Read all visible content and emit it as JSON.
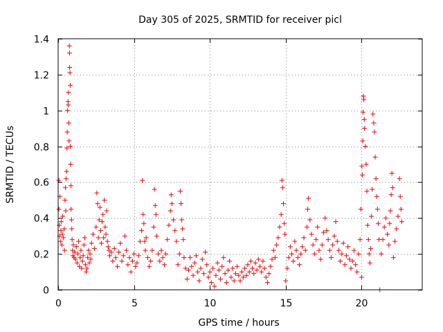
{
  "chart_data": {
    "type": "scatter",
    "title": "Day 305 of 2025, SRMTID for receiver picl",
    "xlabel": "GPS time / hours",
    "ylabel": "SRMTID / TECUs",
    "xlim": [
      0,
      24
    ],
    "ylim": [
      0,
      1.4
    ],
    "xticks": [
      0,
      5,
      10,
      15,
      20
    ],
    "xtick_labels": [
      "0",
      "5",
      "10",
      "15",
      "20"
    ],
    "yticks": [
      0,
      0.2,
      0.4,
      0.6,
      0.8,
      1.0,
      1.2,
      1.4
    ],
    "ytick_labels": [
      "0",
      "0.2",
      "0.4",
      "0.6",
      "0.8",
      "1",
      "1.2",
      "1.4"
    ],
    "grid": true,
    "marker": "plus",
    "color": "#ee0000",
    "series": [
      {
        "name": "SRMTID",
        "points": [
          [
            0.05,
            0.61
          ],
          [
            0.05,
            0.45
          ],
          [
            0.08,
            0.36
          ],
          [
            0.1,
            0.3
          ],
          [
            0.12,
            0.52
          ],
          [
            0.15,
            0.27
          ],
          [
            0.18,
            0.33
          ],
          [
            0.2,
            0.38
          ],
          [
            0.25,
            0.25
          ],
          [
            0.28,
            0.31
          ],
          [
            0.3,
            0.41
          ],
          [
            0.35,
            0.29
          ],
          [
            0.4,
            0.34
          ],
          [
            0.42,
            0.22
          ],
          [
            0.45,
            0.5
          ],
          [
            0.48,
            0.57
          ],
          [
            0.5,
            0.44
          ],
          [
            0.52,
            0.62
          ],
          [
            0.55,
            0.66
          ],
          [
            0.58,
            0.79
          ],
          [
            0.6,
            0.88
          ],
          [
            0.62,
            1.0
          ],
          [
            0.65,
            1.05
          ],
          [
            0.66,
            1.03
          ],
          [
            0.68,
            1.1
          ],
          [
            0.7,
            0.93
          ],
          [
            0.72,
            0.83
          ],
          [
            0.74,
            1.36
          ],
          [
            0.75,
            1.32
          ],
          [
            0.76,
            1.24
          ],
          [
            0.78,
            1.21
          ],
          [
            0.8,
            1.14
          ],
          [
            0.8,
            0.8
          ],
          [
            0.82,
            0.7
          ],
          [
            0.84,
            0.58
          ],
          [
            0.85,
            0.45
          ],
          [
            0.88,
            0.39
          ],
          [
            0.9,
            0.34
          ],
          [
            0.92,
            0.28
          ],
          [
            0.95,
            0.22
          ],
          [
            0.98,
            0.19
          ],
          [
            1.0,
            0.25
          ],
          [
            1.05,
            0.18
          ],
          [
            1.1,
            0.21
          ],
          [
            1.15,
            0.17
          ],
          [
            1.2,
            0.24
          ],
          [
            1.25,
            0.15
          ],
          [
            1.3,
            0.2
          ],
          [
            1.35,
            0.27
          ],
          [
            1.4,
            0.13
          ],
          [
            1.45,
            0.18
          ],
          [
            1.5,
            0.22
          ],
          [
            1.55,
            0.12
          ],
          [
            1.6,
            0.16
          ],
          [
            1.65,
            0.19
          ],
          [
            1.7,
            0.25
          ],
          [
            1.75,
            0.29
          ],
          [
            1.8,
            0.14
          ],
          [
            1.85,
            0.1
          ],
          [
            1.9,
            0.12
          ],
          [
            1.95,
            0.18
          ],
          [
            2.0,
            0.22
          ],
          [
            2.05,
            0.15
          ],
          [
            2.1,
            0.2
          ],
          [
            2.15,
            0.17
          ],
          [
            2.2,
            0.26
          ],
          [
            2.3,
            0.31
          ],
          [
            2.4,
            0.23
          ],
          [
            2.5,
            0.35
          ],
          [
            2.55,
            0.54
          ],
          [
            2.6,
            0.48
          ],
          [
            2.65,
            0.29
          ],
          [
            2.7,
            0.39
          ],
          [
            2.75,
            0.46
          ],
          [
            2.8,
            0.33
          ],
          [
            2.85,
            0.26
          ],
          [
            2.9,
            0.38
          ],
          [
            2.95,
            0.42
          ],
          [
            3.0,
            0.29
          ],
          [
            3.05,
            0.5
          ],
          [
            3.1,
            0.35
          ],
          [
            3.15,
            0.31
          ],
          [
            3.2,
            0.44
          ],
          [
            3.25,
            0.27
          ],
          [
            3.3,
            0.24
          ],
          [
            3.35,
            0.22
          ],
          [
            3.4,
            0.19
          ],
          [
            3.5,
            0.21
          ],
          [
            3.6,
            0.16
          ],
          [
            3.7,
            0.23
          ],
          [
            3.8,
            0.18
          ],
          [
            3.9,
            0.13
          ],
          [
            4.0,
            0.21
          ],
          [
            4.1,
            0.26
          ],
          [
            4.2,
            0.16
          ],
          [
            4.3,
            0.19
          ],
          [
            4.4,
            0.3
          ],
          [
            4.5,
            0.22
          ],
          [
            4.6,
            0.14
          ],
          [
            4.7,
            0.18
          ],
          [
            4.8,
            0.1
          ],
          [
            4.9,
            0.16
          ],
          [
            5.0,
            0.2
          ],
          [
            5.1,
            0.13
          ],
          [
            5.2,
            0.15
          ],
          [
            5.3,
            0.19
          ],
          [
            5.4,
            0.27
          ],
          [
            5.5,
            0.33
          ],
          [
            5.55,
            0.61
          ],
          [
            5.6,
            0.42
          ],
          [
            5.65,
            0.37
          ],
          [
            5.7,
            0.27
          ],
          [
            5.75,
            0.22
          ],
          [
            5.8,
            0.29
          ],
          [
            5.9,
            0.18
          ],
          [
            6.0,
            0.13
          ],
          [
            6.1,
            0.16
          ],
          [
            6.2,
            0.22
          ],
          [
            6.3,
            0.35
          ],
          [
            6.35,
            0.56
          ],
          [
            6.4,
            0.47
          ],
          [
            6.45,
            0.42
          ],
          [
            6.5,
            0.3
          ],
          [
            6.6,
            0.2
          ],
          [
            6.7,
            0.16
          ],
          [
            6.8,
            0.22
          ],
          [
            6.9,
            0.18
          ],
          [
            7.0,
            0.14
          ],
          [
            7.1,
            0.2
          ],
          [
            7.2,
            0.28
          ],
          [
            7.3,
            0.36
          ],
          [
            7.4,
            0.44
          ],
          [
            7.45,
            0.53
          ],
          [
            7.5,
            0.48
          ],
          [
            7.6,
            0.39
          ],
          [
            7.7,
            0.33
          ],
          [
            7.8,
            0.27
          ],
          [
            7.9,
            0.14
          ],
          [
            8.0,
            0.2
          ],
          [
            8.05,
            0.55
          ],
          [
            8.1,
            0.48
          ],
          [
            8.15,
            0.39
          ],
          [
            8.2,
            0.34
          ],
          [
            8.25,
            0.28
          ],
          [
            8.3,
            0.18
          ],
          [
            8.4,
            0.12
          ],
          [
            8.5,
            0.06
          ],
          [
            8.6,
            0.11
          ],
          [
            8.7,
            0.18
          ],
          [
            8.8,
            0.13
          ],
          [
            8.9,
            0.08
          ],
          [
            9.0,
            0.15
          ],
          [
            9.1,
            0.19
          ],
          [
            9.2,
            0.1
          ],
          [
            9.3,
            0.05
          ],
          [
            9.4,
            0.12
          ],
          [
            9.5,
            0.17
          ],
          [
            9.6,
            0.09
          ],
          [
            9.7,
            0.21
          ],
          [
            9.8,
            0.14
          ],
          [
            9.9,
            0.07
          ],
          [
            10.0,
            0.1
          ],
          [
            10.1,
            0.04
          ],
          [
            10.2,
            0.12
          ],
          [
            10.3,
            0.02
          ],
          [
            10.4,
            0.08
          ],
          [
            10.5,
            0.15
          ],
          [
            10.6,
            0.11
          ],
          [
            10.7,
            0.06
          ],
          [
            10.8,
            0.13
          ],
          [
            10.9,
            0.18
          ],
          [
            11.0,
            0.09
          ],
          [
            11.1,
            0.04
          ],
          [
            11.2,
            0.11
          ],
          [
            11.3,
            0.16
          ],
          [
            11.4,
            0.07
          ],
          [
            11.5,
            0.12
          ],
          [
            11.6,
            0.05
          ],
          [
            11.7,
            0.09
          ],
          [
            11.8,
            0.13
          ],
          [
            11.9,
            0.08
          ],
          [
            12.0,
            0.05
          ],
          [
            12.1,
            0.1
          ],
          [
            12.2,
            0.07
          ],
          [
            12.3,
            0.12
          ],
          [
            12.4,
            0.08
          ],
          [
            12.5,
            0.14
          ],
          [
            12.6,
            0.1
          ],
          [
            12.7,
            0.16
          ],
          [
            12.8,
            0.12
          ],
          [
            12.9,
            0.09
          ],
          [
            13.0,
            0.15
          ],
          [
            13.1,
            0.11
          ],
          [
            13.2,
            0.17
          ],
          [
            13.3,
            0.13
          ],
          [
            13.4,
            0.1
          ],
          [
            13.5,
            0.16
          ],
          [
            13.6,
            0.12
          ],
          [
            13.7,
            0.07
          ],
          [
            13.8,
            0.04
          ],
          [
            13.9,
            0.09
          ],
          [
            14.0,
            0.13
          ],
          [
            14.1,
            0.17
          ],
          [
            14.2,
            0.22
          ],
          [
            14.3,
            0.18
          ],
          [
            14.4,
            0.25
          ],
          [
            14.5,
            0.29
          ],
          [
            14.6,
            0.35
          ],
          [
            14.7,
            0.42
          ],
          [
            14.75,
            0.61
          ],
          [
            14.8,
            0.57
          ],
          [
            14.85,
            0.48
          ],
          [
            14.9,
            0.37
          ],
          [
            14.95,
            0.31
          ],
          [
            15.0,
            0.05
          ],
          [
            15.1,
            0.12
          ],
          [
            15.2,
            0.18
          ],
          [
            15.3,
            0.24
          ],
          [
            15.4,
            0.2
          ],
          [
            15.5,
            0.16
          ],
          [
            15.6,
            0.27
          ],
          [
            15.7,
            0.22
          ],
          [
            15.8,
            0.18
          ],
          [
            15.9,
            0.14
          ],
          [
            16.0,
            0.2
          ],
          [
            16.1,
            0.24
          ],
          [
            16.2,
            0.29
          ],
          [
            16.3,
            0.22
          ],
          [
            16.4,
            0.35
          ],
          [
            16.45,
            0.45
          ],
          [
            16.5,
            0.51
          ],
          [
            16.6,
            0.39
          ],
          [
            16.7,
            0.31
          ],
          [
            16.8,
            0.25
          ],
          [
            16.9,
            0.2
          ],
          [
            17.0,
            0.28
          ],
          [
            17.1,
            0.35
          ],
          [
            17.2,
            0.22
          ],
          [
            17.3,
            0.17
          ],
          [
            17.4,
            0.25
          ],
          [
            17.5,
            0.32
          ],
          [
            17.6,
            0.4
          ],
          [
            17.7,
            0.33
          ],
          [
            17.8,
            0.28
          ],
          [
            17.9,
            0.22
          ],
          [
            18.0,
            0.18
          ],
          [
            18.1,
            0.25
          ],
          [
            18.2,
            0.3
          ],
          [
            18.3,
            0.38
          ],
          [
            18.4,
            0.27
          ],
          [
            18.5,
            0.22
          ],
          [
            18.6,
            0.16
          ],
          [
            18.7,
            0.2
          ],
          [
            18.8,
            0.26
          ],
          [
            18.9,
            0.14
          ],
          [
            19.0,
            0.19
          ],
          [
            19.1,
            0.24
          ],
          [
            19.2,
            0.17
          ],
          [
            19.3,
            0.12
          ],
          [
            19.4,
            0.16
          ],
          [
            19.5,
            0.22
          ],
          [
            19.6,
            0.14
          ],
          [
            19.7,
            0.1
          ],
          [
            19.8,
            0.2
          ],
          [
            19.9,
            0.28
          ],
          [
            19.95,
            0.45
          ],
          [
            20.0,
            0.07
          ],
          [
            20.02,
            0.69
          ],
          [
            20.05,
            0.64
          ],
          [
            20.08,
            0.83
          ],
          [
            20.1,
            0.99
          ],
          [
            20.12,
            1.08
          ],
          [
            20.15,
            1.06
          ],
          [
            20.18,
            0.95
          ],
          [
            20.2,
            0.9
          ],
          [
            20.25,
            0.8
          ],
          [
            20.3,
            0.7
          ],
          [
            20.35,
            0.55
          ],
          [
            20.4,
            0.36
          ],
          [
            20.45,
            0.28
          ],
          [
            20.5,
            0.2
          ],
          [
            20.55,
            0.15
          ],
          [
            20.6,
            0.23
          ],
          [
            20.65,
            0.41
          ],
          [
            20.7,
            0.56
          ],
          [
            20.75,
            0.98
          ],
          [
            20.8,
            0.93
          ],
          [
            20.85,
            0.88
          ],
          [
            20.9,
            0.74
          ],
          [
            20.95,
            0.62
          ],
          [
            21.0,
            0.52
          ],
          [
            21.05,
            0.45
          ],
          [
            21.1,
            0.37
          ],
          [
            21.15,
            0.28
          ],
          [
            21.2,
            0.0
          ],
          [
            21.3,
            0.2
          ],
          [
            21.4,
            0.28
          ],
          [
            21.5,
            0.35
          ],
          [
            21.6,
            0.4
          ],
          [
            21.7,
            0.31
          ],
          [
            21.8,
            0.25
          ],
          [
            21.85,
            0.37
          ],
          [
            21.9,
            0.44
          ],
          [
            21.95,
            0.53
          ],
          [
            22.0,
            0.65
          ],
          [
            22.05,
            0.57
          ],
          [
            22.1,
            0.18
          ],
          [
            22.2,
            0.27
          ],
          [
            22.3,
            0.34
          ],
          [
            22.4,
            0.41
          ],
          [
            22.5,
            0.62
          ],
          [
            22.55,
            0.52
          ],
          [
            22.6,
            0.45
          ],
          [
            22.65,
            0.38
          ]
        ]
      }
    ]
  }
}
